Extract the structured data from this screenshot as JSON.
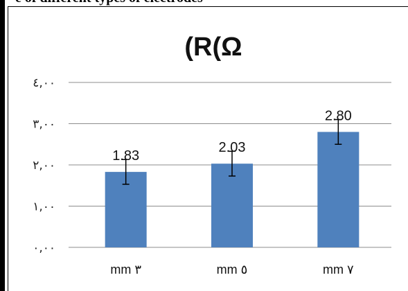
{
  "page": {
    "top_caption": "e of different types of electrodes"
  },
  "chart_data": {
    "type": "bar",
    "title": "(R(Ω",
    "categories": [
      "mm ٣",
      "mm ٥",
      "mm ٧"
    ],
    "values": [
      1.83,
      2.03,
      2.8
    ],
    "data_labels": [
      "1.83",
      "2.03",
      "2.80"
    ],
    "error": [
      0.3,
      0.3,
      0.3
    ],
    "yticks": [
      0,
      1,
      2,
      3,
      4
    ],
    "ytick_labels": [
      "٠,٠٠",
      "١,٠٠",
      "٢,٠٠",
      "٣,٠٠",
      "٤,٠٠"
    ],
    "ylim": [
      0,
      4
    ],
    "xlabel": "",
    "ylabel": "",
    "grid": true,
    "legend": "none",
    "bar_color": "#4f81bd",
    "grid_color": "#8c8c8c"
  }
}
